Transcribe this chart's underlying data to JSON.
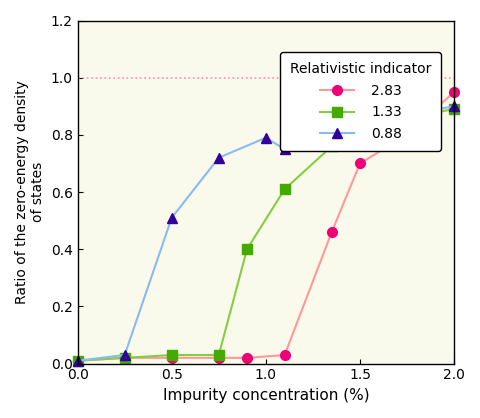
{
  "xlabel": "Impurity concentration (%)",
  "ylabel": "Ratio of the zero-energy density\nof states",
  "xlim": [
    0,
    2.0
  ],
  "ylim": [
    0,
    1.2
  ],
  "xticks": [
    0,
    0.5,
    1.0,
    1.5,
    2.0
  ],
  "yticks": [
    0,
    0.2,
    0.4,
    0.6,
    0.8,
    1.0,
    1.2
  ],
  "axes_bg_color": "#fafaec",
  "fig_bg_color": "#ffffff",
  "hline_y": 1.0,
  "hline_color": "#ff88bb",
  "hline_style": ":",
  "series": [
    {
      "label": "2.83",
      "line_color": "#ff9999",
      "marker_color": "#ee0077",
      "marker": "o",
      "markersize": 7,
      "x": [
        0.0,
        0.25,
        0.5,
        0.75,
        0.9,
        1.1,
        1.35,
        1.5,
        1.75,
        2.0
      ],
      "y": [
        0.01,
        0.02,
        0.02,
        0.02,
        0.02,
        0.03,
        0.46,
        0.7,
        0.8,
        0.95
      ]
    },
    {
      "label": "1.33",
      "line_color": "#88cc44",
      "marker_color": "#44aa00",
      "marker": "s",
      "markersize": 7,
      "x": [
        0.0,
        0.25,
        0.5,
        0.75,
        0.9,
        1.1,
        1.35,
        1.5,
        1.75,
        2.0
      ],
      "y": [
        0.01,
        0.02,
        0.03,
        0.03,
        0.4,
        0.61,
        0.76,
        0.79,
        0.86,
        0.89
      ]
    },
    {
      "label": "0.88",
      "line_color": "#88bbee",
      "marker_color": "#330099",
      "marker": "^",
      "markersize": 7,
      "x": [
        0.0,
        0.25,
        0.5,
        0.75,
        1.0,
        1.1,
        1.35,
        1.5,
        1.75,
        2.0
      ],
      "y": [
        0.01,
        0.03,
        0.51,
        0.72,
        0.79,
        0.75,
        0.8,
        0.85,
        0.87,
        0.9
      ]
    }
  ],
  "legend_title": "Relativistic indicator",
  "xlabel_fontsize": 11,
  "ylabel_fontsize": 10,
  "tick_fontsize": 10,
  "legend_fontsize": 10,
  "legend_title_fontsize": 10
}
